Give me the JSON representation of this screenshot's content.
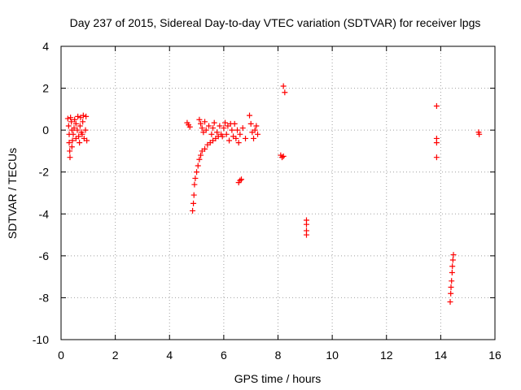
{
  "chart_data": {
    "type": "scatter",
    "title": "Day 237 of 2015, Sidereal Day-to-day VTEC variation (SDTVAR) for receiver lpgs",
    "xlabel": "GPS time / hours",
    "ylabel": "SDTVAR / TECUs",
    "xlim": [
      0,
      16
    ],
    "ylim": [
      -10,
      4
    ],
    "xticks": [
      0,
      2,
      4,
      6,
      8,
      10,
      12,
      14,
      16
    ],
    "yticks": [
      4,
      2,
      0,
      -2,
      -4,
      -6,
      -8,
      -10
    ],
    "grid": true,
    "marker": "+",
    "color": "#ff0000",
    "series": [
      {
        "values": [
          [
            0.25,
            0.55
          ],
          [
            0.28,
            0.2
          ],
          [
            0.3,
            -0.2
          ],
          [
            0.3,
            -0.6
          ],
          [
            0.32,
            -1.0
          ],
          [
            0.33,
            -1.3
          ],
          [
            0.35,
            0.6
          ],
          [
            0.38,
            0.4
          ],
          [
            0.4,
            -0.8
          ],
          [
            0.42,
            -0.5
          ],
          [
            0.45,
            -0.2
          ],
          [
            0.48,
            0.1
          ],
          [
            0.5,
            0.5
          ],
          [
            0.55,
            0.3
          ],
          [
            0.6,
            0.0
          ],
          [
            0.62,
            0.65
          ],
          [
            0.65,
            -0.3
          ],
          [
            0.7,
            0.2
          ],
          [
            0.72,
            0.6
          ],
          [
            0.75,
            -0.1
          ],
          [
            0.8,
            0.4
          ],
          [
            0.82,
            0.7
          ],
          [
            0.85,
            -0.4
          ],
          [
            0.9,
            0.0
          ],
          [
            0.92,
            0.65
          ],
          [
            0.95,
            -0.5
          ],
          [
            0.4,
            0.0
          ],
          [
            0.55,
            -0.4
          ],
          [
            0.68,
            -0.6
          ],
          [
            0.78,
            -0.2
          ],
          [
            4.65,
            0.35
          ],
          [
            4.7,
            0.25
          ],
          [
            4.75,
            0.15
          ],
          [
            4.85,
            -3.85
          ],
          [
            4.88,
            -3.5
          ],
          [
            4.9,
            -3.1
          ],
          [
            4.92,
            -2.6
          ],
          [
            4.95,
            -2.3
          ],
          [
            5.0,
            -2.0
          ],
          [
            5.05,
            -1.7
          ],
          [
            5.1,
            -1.4
          ],
          [
            5.15,
            -1.2
          ],
          [
            5.2,
            -1.0
          ],
          [
            5.3,
            -0.9
          ],
          [
            5.4,
            -0.7
          ],
          [
            5.5,
            -0.6
          ],
          [
            5.6,
            -0.5
          ],
          [
            5.7,
            -0.4
          ],
          [
            5.8,
            -0.3
          ],
          [
            5.9,
            -0.2
          ],
          [
            5.1,
            0.5
          ],
          [
            5.15,
            0.3
          ],
          [
            5.2,
            0.1
          ],
          [
            5.25,
            -0.1
          ],
          [
            5.3,
            0.4
          ],
          [
            5.35,
            0.0
          ],
          [
            5.45,
            0.2
          ],
          [
            5.55,
            -0.2
          ],
          [
            5.6,
            0.1
          ],
          [
            5.65,
            0.35
          ],
          [
            5.75,
            -0.1
          ],
          [
            5.85,
            0.2
          ],
          [
            5.95,
            -0.3
          ],
          [
            6.0,
            0.1
          ],
          [
            6.05,
            0.35
          ],
          [
            6.1,
            -0.2
          ],
          [
            6.15,
            0.2
          ],
          [
            6.2,
            -0.5
          ],
          [
            6.25,
            0.3
          ],
          [
            6.3,
            0.0
          ],
          [
            6.35,
            -0.3
          ],
          [
            6.4,
            0.3
          ],
          [
            6.45,
            -0.4
          ],
          [
            6.5,
            0.0
          ],
          [
            6.55,
            -0.6
          ],
          [
            6.6,
            -0.2
          ],
          [
            6.7,
            0.1
          ],
          [
            6.8,
            -0.4
          ],
          [
            6.55,
            -2.5
          ],
          [
            6.6,
            -2.4
          ],
          [
            6.65,
            -2.35
          ],
          [
            6.95,
            0.7
          ],
          [
            7.0,
            0.3
          ],
          [
            7.05,
            -0.1
          ],
          [
            7.1,
            -0.4
          ],
          [
            7.15,
            0.0
          ],
          [
            7.2,
            0.2
          ],
          [
            7.25,
            -0.2
          ],
          [
            8.1,
            -1.2
          ],
          [
            8.15,
            -1.3
          ],
          [
            8.2,
            -1.25
          ],
          [
            8.2,
            2.1
          ],
          [
            8.25,
            1.8
          ],
          [
            9.05,
            -4.3
          ],
          [
            9.05,
            -4.5
          ],
          [
            9.05,
            -4.8
          ],
          [
            9.05,
            -5.0
          ],
          [
            13.85,
            1.15
          ],
          [
            13.85,
            -0.4
          ],
          [
            13.85,
            -0.6
          ],
          [
            13.85,
            -1.3
          ],
          [
            14.35,
            -8.2
          ],
          [
            14.37,
            -7.8
          ],
          [
            14.38,
            -7.5
          ],
          [
            14.4,
            -7.2
          ],
          [
            14.42,
            -6.8
          ],
          [
            14.43,
            -6.5
          ],
          [
            14.45,
            -6.2
          ],
          [
            14.47,
            -5.95
          ],
          [
            15.4,
            -0.1
          ],
          [
            15.42,
            -0.2
          ]
        ]
      }
    ]
  }
}
